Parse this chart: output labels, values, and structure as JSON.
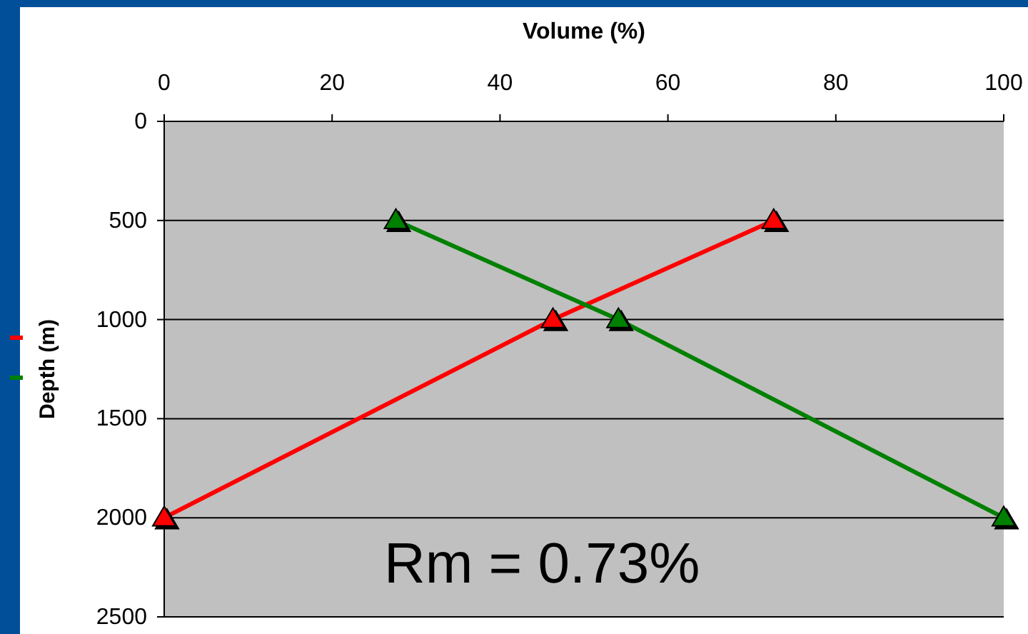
{
  "chart_data": {
    "type": "line",
    "xlabel": "Volume (%)",
    "ylabel": "Depth (m)",
    "xlim": [
      0,
      100
    ],
    "xticks": [
      0,
      20,
      40,
      60,
      80,
      100
    ],
    "ylim": [
      2500,
      0
    ],
    "yticks": [
      0,
      500,
      1000,
      1500,
      2000,
      2500
    ],
    "grid": "y",
    "marker": "triangle",
    "annotations": [
      "Rm = 0.73%"
    ],
    "series": [
      {
        "color": "#ff0000",
        "x": [
          0,
          46.3,
          72.6
        ],
        "values": [
          2000,
          1000,
          500
        ]
      },
      {
        "color": "#008000",
        "x": [
          27.6,
          54.1,
          100
        ],
        "values": [
          500,
          1000,
          2000
        ]
      }
    ]
  }
}
